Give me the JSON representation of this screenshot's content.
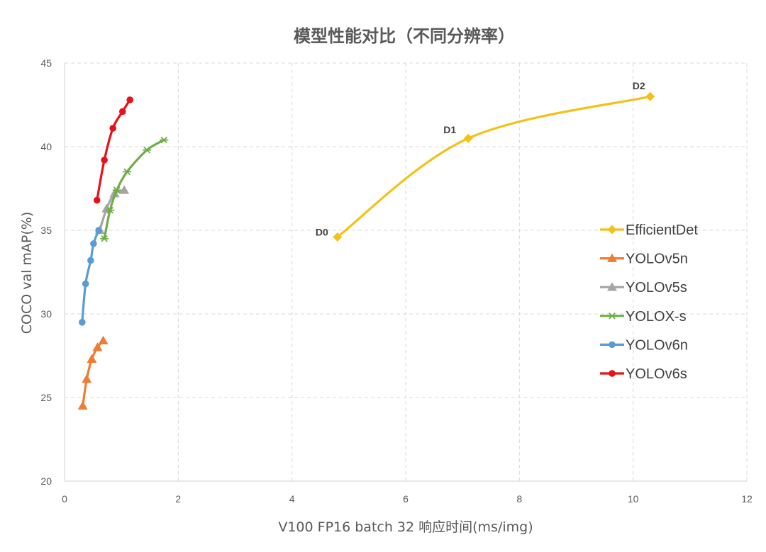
{
  "chart_data": {
    "type": "line",
    "title": "模型性能对比（不同分辨率）",
    "xlabel": "V100 FP16 batch 32 响应时间(ms/img)",
    "ylabel": "COCO val mAP(%)",
    "xlim": [
      0,
      12
    ],
    "ylim": [
      20,
      45
    ],
    "x_ticks": [
      0,
      2,
      4,
      6,
      8,
      10,
      12
    ],
    "y_ticks": [
      20,
      25,
      30,
      35,
      40,
      45
    ],
    "grid": "dashed",
    "legend_position": "right",
    "series": [
      {
        "name": "EfficientDet",
        "color": "#F2C21B",
        "marker": "diamond",
        "x": [
          4.8,
          7.1,
          10.3
        ],
        "y": [
          34.6,
          40.5,
          43.0
        ],
        "point_labels": [
          "D0",
          "D1",
          "D2"
        ]
      },
      {
        "name": "YOLOv5n",
        "color": "#ED7D31",
        "marker": "triangle",
        "x": [
          0.32,
          0.39,
          0.48,
          0.58,
          0.68
        ],
        "y": [
          24.5,
          26.1,
          27.3,
          28.0,
          28.4
        ]
      },
      {
        "name": "YOLOv5s",
        "color": "#A5A5A5",
        "marker": "triangle",
        "x": [
          0.62,
          0.74,
          0.88,
          1.05
        ],
        "y": [
          35.0,
          36.3,
          37.2,
          37.4
        ]
      },
      {
        "name": "YOLOX-s",
        "color": "#70AD47",
        "marker": "asterisk",
        "x": [
          0.7,
          0.8,
          0.92,
          1.1,
          1.45,
          1.75
        ],
        "y": [
          34.5,
          36.2,
          37.4,
          38.5,
          39.8,
          40.4
        ]
      },
      {
        "name": "YOLOv6n",
        "color": "#5B9BD5",
        "marker": "circle",
        "x": [
          0.31,
          0.37,
          0.46,
          0.51,
          0.6
        ],
        "y": [
          29.5,
          31.8,
          33.2,
          34.2,
          35.0
        ]
      },
      {
        "name": "YOLOv6s",
        "color": "#E8111A",
        "marker": "circle",
        "x": [
          0.57,
          0.7,
          0.85,
          1.02,
          1.15
        ],
        "y": [
          36.8,
          39.2,
          41.1,
          42.1,
          42.8
        ]
      }
    ]
  }
}
